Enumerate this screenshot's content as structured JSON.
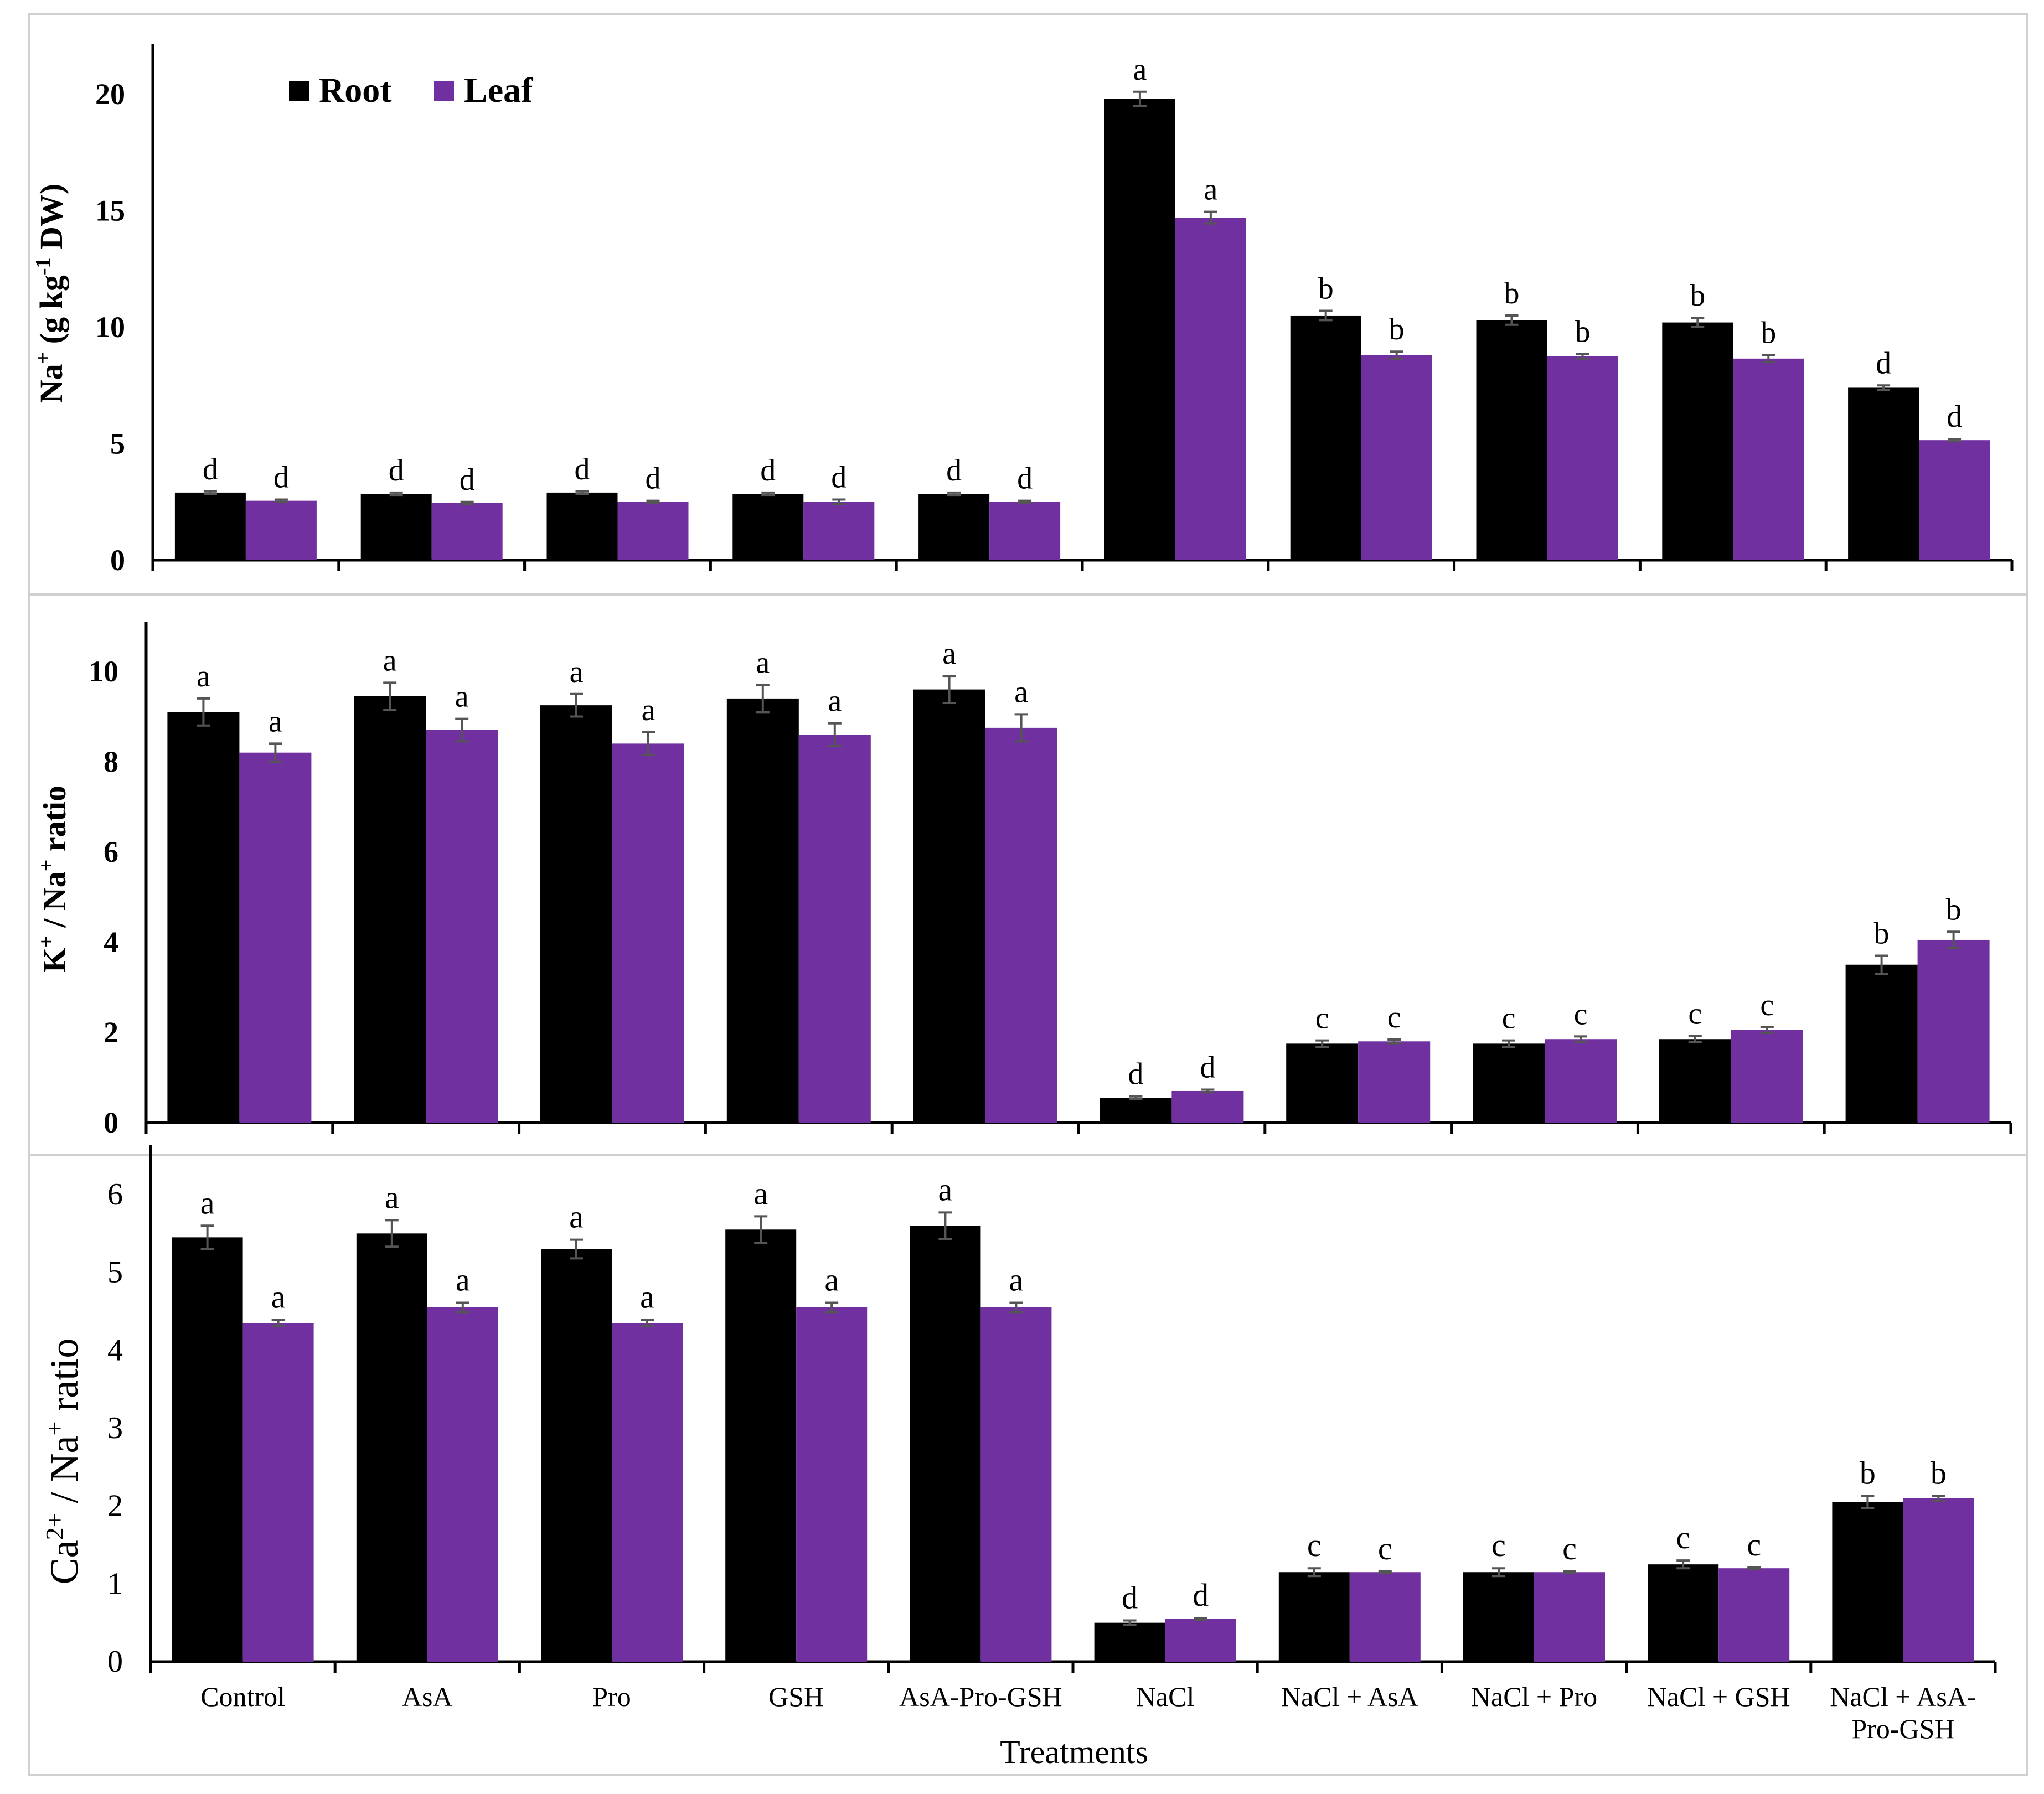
{
  "colors": {
    "root": "#000000",
    "leaf": "#7030a0",
    "error_bar": "#555555",
    "axis": "#000000"
  },
  "legend": {
    "root_label": "Root",
    "leaf_label": "Leaf"
  },
  "xlabel": "Treatments",
  "chart_data": [
    {
      "type": "bar",
      "panel": "Na+ content",
      "ylabel": "Na+ (g kg-1 DW)",
      "ylim": [
        0,
        20
      ],
      "yticks": [
        "0",
        "5",
        "10",
        "15",
        "20"
      ],
      "categories": [
        "Control",
        "AsA",
        "Pro",
        "GSH",
        "AsA-Pro-GSH",
        "NaCl",
        "NaCl + AsA",
        "NaCl + Pro",
        "NaCl + GSH",
        "NaCl + AsA-Pro-GSH"
      ],
      "series": [
        {
          "name": "Root",
          "values": [
            2.9,
            2.85,
            2.9,
            2.85,
            2.85,
            19.8,
            10.5,
            10.3,
            10.2,
            7.4
          ],
          "errors": [
            0.05,
            0.05,
            0.05,
            0.05,
            0.05,
            0.3,
            0.2,
            0.2,
            0.2,
            0.1
          ],
          "letters": [
            "d",
            "d",
            "d",
            "d",
            "d",
            "a",
            "b",
            "b",
            "b",
            "d"
          ]
        },
        {
          "name": "Leaf",
          "values": [
            2.55,
            2.45,
            2.5,
            2.5,
            2.5,
            14.7,
            8.8,
            8.75,
            8.65,
            5.15
          ],
          "errors": [
            0.05,
            0.05,
            0.05,
            0.1,
            0.05,
            0.25,
            0.15,
            0.1,
            0.15,
            0.05
          ],
          "letters": [
            "d",
            "d",
            "d",
            "d",
            "d",
            "a",
            "b",
            "b",
            "b",
            "d"
          ]
        }
      ],
      "legend_position": "top-left"
    },
    {
      "type": "bar",
      "panel": "K+/Na+ ratio",
      "ylabel": "K+ / Na+ ratio",
      "ylim": [
        0,
        10
      ],
      "yticks": [
        "0",
        "2",
        "4",
        "6",
        "8",
        "10"
      ],
      "categories": [
        "Control",
        "AsA",
        "Pro",
        "GSH",
        "AsA-Pro-GSH",
        "NaCl",
        "NaCl + AsA",
        "NaCl + Pro",
        "NaCl + GSH",
        "NaCl + AsA-Pro-GSH"
      ],
      "series": [
        {
          "name": "Root",
          "values": [
            9.1,
            9.45,
            9.25,
            9.4,
            9.6,
            0.55,
            1.75,
            1.75,
            1.85,
            3.5
          ],
          "errors": [
            0.3,
            0.3,
            0.25,
            0.3,
            0.3,
            0.03,
            0.07,
            0.07,
            0.07,
            0.2
          ],
          "letters": [
            "a",
            "a",
            "a",
            "a",
            "a",
            "d",
            "c",
            "c",
            "c",
            "b"
          ]
        },
        {
          "name": "Leaf",
          "values": [
            8.2,
            8.7,
            8.4,
            8.6,
            8.75,
            0.7,
            1.8,
            1.85,
            2.05,
            4.05
          ],
          "errors": [
            0.2,
            0.25,
            0.25,
            0.25,
            0.3,
            0.03,
            0.04,
            0.06,
            0.06,
            0.18
          ],
          "letters": [
            "a",
            "a",
            "a",
            "a",
            "a",
            "d",
            "c",
            "c",
            "c",
            "b"
          ]
        }
      ]
    },
    {
      "type": "bar",
      "panel": "Ca2+/Na+ ratio",
      "ylabel": "Ca2+ / Na+ ratio",
      "ylim": [
        0,
        6
      ],
      "yticks": [
        "0",
        "1",
        "2",
        "3",
        "4",
        "5",
        "6"
      ],
      "categories": [
        "Control",
        "AsA",
        "Pro",
        "GSH",
        "AsA-Pro-GSH",
        "NaCl",
        "NaCl + AsA",
        "NaCl + Pro",
        "NaCl + GSH",
        "NaCl + AsA-Pro-GSH"
      ],
      "series": [
        {
          "name": "Root",
          "values": [
            5.45,
            5.5,
            5.3,
            5.55,
            5.6,
            0.5,
            1.15,
            1.15,
            1.25,
            2.05
          ],
          "errors": [
            0.15,
            0.17,
            0.12,
            0.17,
            0.17,
            0.03,
            0.05,
            0.05,
            0.05,
            0.08
          ],
          "letters": [
            "a",
            "a",
            "a",
            "a",
            "a",
            "d",
            "c",
            "c",
            "c",
            "b"
          ]
        },
        {
          "name": "Leaf",
          "values": [
            4.35,
            4.55,
            4.35,
            4.55,
            4.55,
            0.55,
            1.15,
            1.15,
            1.2,
            2.1
          ],
          "errors": [
            0.04,
            0.06,
            0.04,
            0.06,
            0.06,
            0.01,
            0.01,
            0.01,
            0.01,
            0.03
          ],
          "letters": [
            "a",
            "a",
            "a",
            "a",
            "a",
            "d",
            "c",
            "c",
            "c",
            "b"
          ]
        }
      ]
    }
  ]
}
